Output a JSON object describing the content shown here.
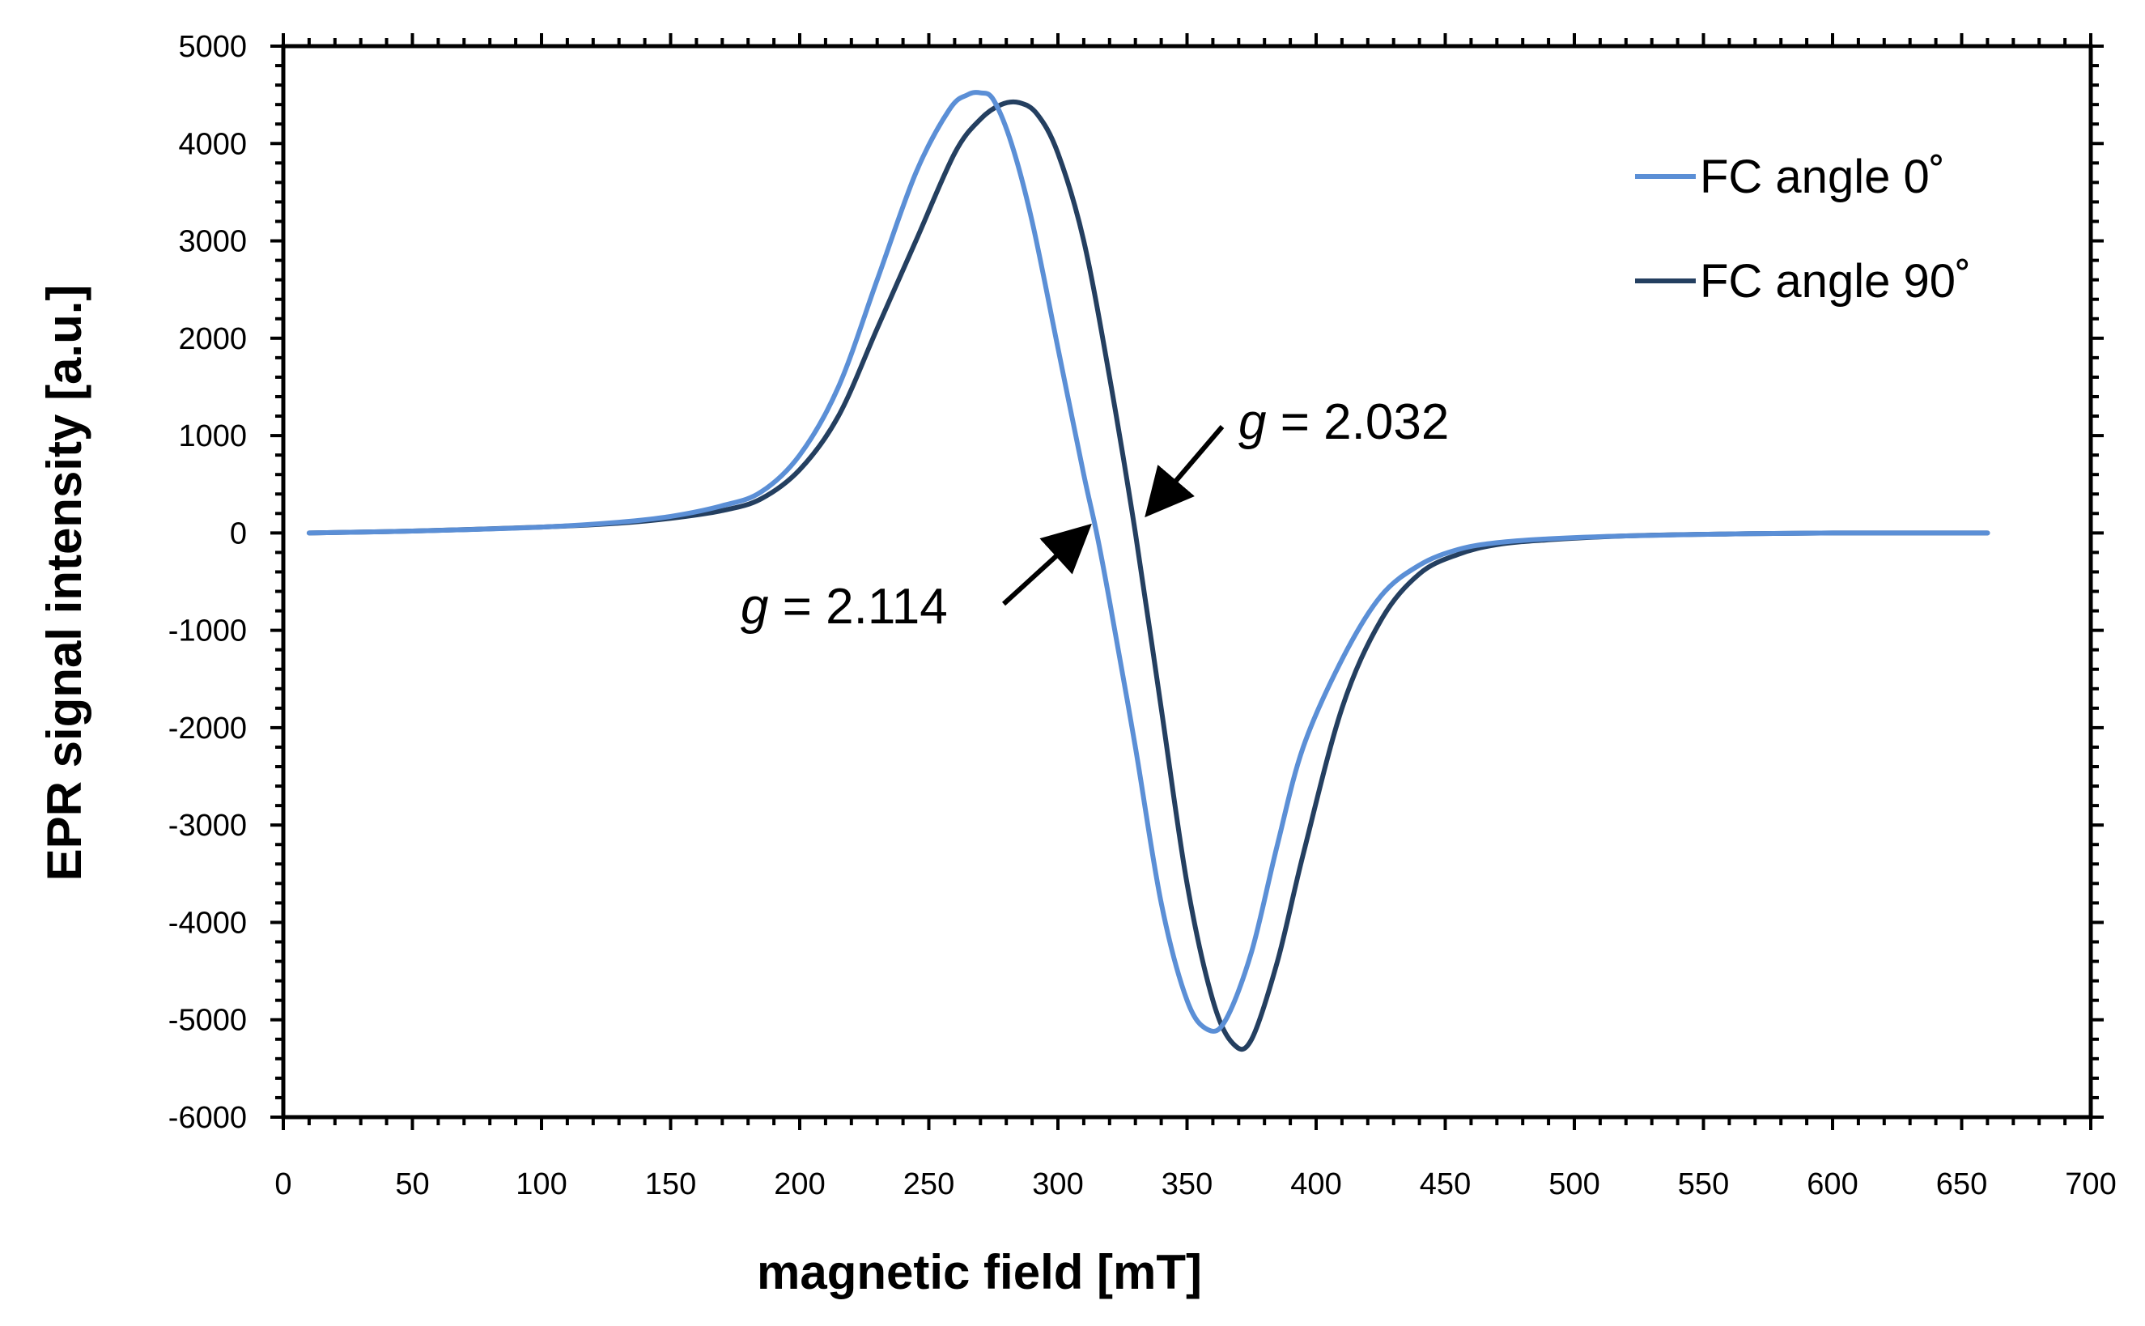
{
  "chart_data": {
    "type": "line",
    "title": "",
    "xlabel": "magnetic field [mT]",
    "ylabel": "EPR signal intensity [a.u.]",
    "xlim": [
      0,
      700
    ],
    "ylim": [
      -6000,
      5000
    ],
    "x_ticks": [
      0,
      50,
      100,
      150,
      200,
      250,
      300,
      350,
      400,
      450,
      500,
      550,
      600,
      650,
      700
    ],
    "y_ticks": [
      5000,
      4000,
      3000,
      2000,
      1000,
      0,
      -1000,
      -2000,
      -3000,
      -4000,
      -5000,
      -6000
    ],
    "x_tick_labels": [
      "0",
      "50",
      "100",
      "150",
      "200",
      "250",
      "300",
      "350",
      "400",
      "450",
      "500",
      "550",
      "600",
      "650",
      "700"
    ],
    "y_tick_labels": [
      "5000",
      "4000",
      "3000",
      "2000",
      "1000",
      "0",
      "-1000",
      "-2000",
      "-3000",
      "-4000",
      "-5000",
      "-6000"
    ],
    "grid": false,
    "legend_position": "top-right",
    "series": [
      {
        "name": "FC angle 0˚",
        "color": "#5b8fd6",
        "x": [
          10,
          50,
          100,
          130,
          150,
          170,
          185,
          200,
          215,
          230,
          245,
          258,
          265,
          270,
          275,
          282,
          290,
          300,
          310,
          315,
          320,
          330,
          340,
          350,
          358,
          365,
          375,
          385,
          395,
          410,
          425,
          440,
          455,
          470,
          490,
          520,
          560,
          600,
          660
        ],
        "y": [
          0,
          20,
          60,
          110,
          170,
          280,
          420,
          800,
          1500,
          2600,
          3700,
          4350,
          4500,
          4520,
          4450,
          4000,
          3200,
          1900,
          600,
          0,
          -700,
          -2200,
          -3800,
          -4800,
          -5100,
          -5000,
          -4300,
          -3200,
          -2200,
          -1300,
          -650,
          -330,
          -170,
          -100,
          -60,
          -30,
          -10,
          0,
          0
        ]
      },
      {
        "name": "FC angle 90˚",
        "color": "#243f60",
        "x": [
          10,
          50,
          100,
          130,
          150,
          170,
          185,
          200,
          215,
          230,
          245,
          260,
          270,
          278,
          285,
          292,
          300,
          310,
          320,
          330,
          340,
          350,
          360,
          368,
          375,
          385,
          395,
          410,
          425,
          440,
          455,
          470,
          490,
          520,
          560,
          600,
          660
        ],
        "y": [
          0,
          20,
          60,
          100,
          150,
          230,
          350,
          650,
          1200,
          2100,
          3000,
          3900,
          4250,
          4400,
          4420,
          4300,
          3900,
          3000,
          1600,
          0,
          -1800,
          -3600,
          -4800,
          -5250,
          -5200,
          -4400,
          -3300,
          -1800,
          -900,
          -420,
          -220,
          -120,
          -70,
          -30,
          -10,
          0,
          0
        ]
      }
    ],
    "annotations": [
      {
        "var": "g",
        "text": " = 2.032",
        "arrow_to": [
          330,
          0
        ]
      },
      {
        "var": "g",
        "text": " = 2.114",
        "arrow_to": [
          315,
          0
        ]
      }
    ]
  }
}
